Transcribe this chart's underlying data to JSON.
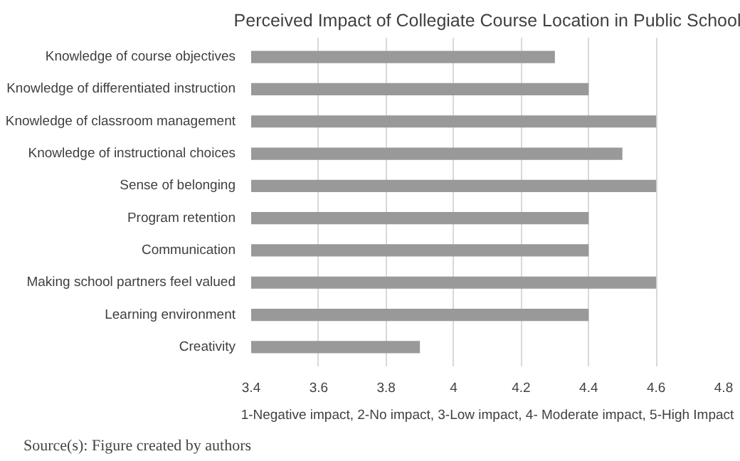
{
  "chart_data": {
    "type": "bar",
    "orientation": "horizontal",
    "title": "Perceived Impact of Collegiate Course Location in Public School",
    "categories": [
      "Knowledge of course objectives",
      "Knowledge of differentiated instruction",
      "Knowledge of classroom management",
      "Knowledge of instructional choices",
      "Sense of belonging",
      "Program retention",
      "Communication",
      "Making school partners feel valued",
      "Learning environment",
      "Creativity"
    ],
    "values": [
      4.3,
      4.4,
      4.6,
      4.5,
      4.6,
      4.4,
      4.4,
      4.6,
      4.4,
      3.9
    ],
    "color": "#999999",
    "xlim": [
      3.4,
      4.8
    ],
    "xticks": [
      3.4,
      3.6,
      3.8,
      4,
      4.2,
      4.4,
      4.6,
      4.8
    ],
    "grid": "x",
    "xlabel": "1-Negative impact, 2-No impact, 3-Low impact, 4- Moderate impact, 5-High Impact",
    "annotations": [
      "Source(s): Figure created by authors"
    ]
  }
}
